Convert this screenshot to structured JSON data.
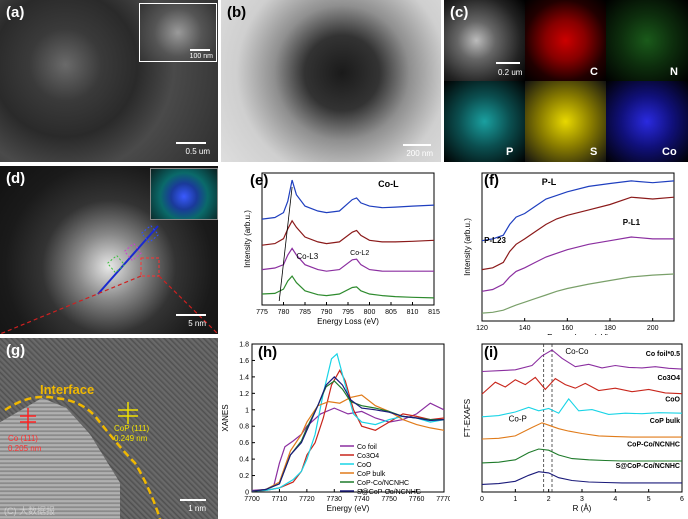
{
  "panels": {
    "a": {
      "label": "(a)",
      "inset_scale": "100 nm",
      "scale": "0.5 um"
    },
    "b": {
      "label": "(b)",
      "scale": "200 nm"
    },
    "c": {
      "label": "(c)",
      "scale": "0.2 um",
      "elements": [
        "C",
        "N",
        "P",
        "S",
        "Co"
      ]
    },
    "d": {
      "label": "(d)",
      "scale": "5 nm"
    },
    "e": {
      "label": "(e)"
    },
    "f": {
      "label": "(f)"
    },
    "g": {
      "label": "(g)",
      "interface": "Interface",
      "co_label": "Co (111)",
      "co_spacing": "0.205 nm",
      "cop_label": "CoP (111)",
      "cop_spacing": "0.249 nm",
      "scale": "1 nm",
      "watermark": "(C) 大数据报"
    },
    "h": {
      "label": "(h)"
    },
    "i": {
      "label": "(i)"
    }
  },
  "chart_data": [
    {
      "type": "line",
      "panel": "e",
      "title": "Co-L",
      "xlabel": "Energy Loss (eV)",
      "ylabel": "Intensity (arb.u.)",
      "xlim": [
        775,
        815
      ],
      "xticks": [
        775,
        780,
        785,
        790,
        795,
        800,
        805,
        810,
        815
      ],
      "annotations": [
        "Co-L3",
        "Co-L2"
      ],
      "series": [
        {
          "color": "#1f3fbf",
          "offset": 3,
          "x": [
            775,
            778,
            780,
            781,
            782,
            783,
            785,
            788,
            790,
            793,
            796,
            797,
            798,
            800,
            803,
            806,
            810,
            815
          ],
          "y": [
            0.35,
            0.4,
            0.55,
            0.9,
            1.55,
            1.1,
            0.75,
            0.6,
            0.55,
            0.6,
            0.95,
            1.0,
            0.85,
            0.75,
            0.7,
            0.72,
            0.75,
            0.78
          ]
        },
        {
          "color": "#8b1a1a",
          "offset": 2,
          "x": [
            775,
            778,
            780,
            781,
            782,
            783,
            785,
            788,
            790,
            793,
            796,
            797,
            798,
            800,
            803,
            806,
            810,
            815
          ],
          "y": [
            0.3,
            0.35,
            0.5,
            0.8,
            1.05,
            0.85,
            0.55,
            0.4,
            0.35,
            0.4,
            0.7,
            0.75,
            0.6,
            0.45,
            0.4,
            0.4,
            0.42,
            0.45
          ]
        },
        {
          "color": "#8b2fa0",
          "offset": 1,
          "x": [
            775,
            778,
            780,
            781,
            782,
            783,
            785,
            788,
            790,
            793,
            796,
            797,
            798,
            800,
            803,
            806,
            810,
            815
          ],
          "y": [
            0.3,
            0.35,
            0.45,
            0.75,
            0.95,
            0.75,
            0.45,
            0.3,
            0.25,
            0.3,
            0.6,
            0.62,
            0.45,
            0.3,
            0.25,
            0.25,
            0.25,
            0.25
          ]
        },
        {
          "color": "#2e8b2e",
          "offset": 0,
          "x": [
            775,
            778,
            780,
            781,
            782,
            783,
            785,
            788,
            790,
            793,
            796,
            797,
            798,
            800,
            803,
            806,
            810,
            815
          ],
          "y": [
            0.3,
            0.32,
            0.45,
            0.7,
            0.85,
            0.65,
            0.4,
            0.28,
            0.25,
            0.3,
            0.5,
            0.52,
            0.4,
            0.3,
            0.25,
            0.22,
            0.2,
            0.18
          ]
        }
      ]
    },
    {
      "type": "line",
      "panel": "f",
      "xlabel": "Energy Loss (eV)",
      "ylabel": "Intensity (arb.u.)",
      "xlim": [
        120,
        210
      ],
      "xticks": [
        120,
        140,
        160,
        180,
        200
      ],
      "annotations": [
        "P-L",
        "P-L1",
        "P-L23"
      ],
      "series": [
        {
          "color": "#1f3fbf",
          "x": [
            120,
            125,
            130,
            133,
            136,
            140,
            145,
            150,
            155,
            160,
            170,
            180,
            190,
            200,
            210
          ],
          "y": [
            2.3,
            2.35,
            2.45,
            2.75,
            2.95,
            3.05,
            3.25,
            3.45,
            3.55,
            3.65,
            3.8,
            3.88,
            3.95,
            3.9,
            3.95
          ]
        },
        {
          "color": "#8b1a1a",
          "x": [
            120,
            125,
            130,
            133,
            136,
            140,
            145,
            150,
            155,
            160,
            170,
            180,
            190,
            200,
            210
          ],
          "y": [
            1.5,
            1.55,
            1.7,
            2.0,
            2.2,
            2.35,
            2.55,
            2.75,
            2.9,
            3.0,
            3.15,
            3.3,
            3.5,
            3.45,
            3.5
          ]
        },
        {
          "color": "#8b2fa0",
          "x": [
            120,
            125,
            130,
            133,
            136,
            140,
            145,
            150,
            155,
            160,
            170,
            180,
            190,
            200,
            210
          ],
          "y": [
            0.9,
            0.95,
            1.1,
            1.3,
            1.45,
            1.55,
            1.7,
            1.85,
            1.95,
            2.05,
            2.2,
            2.3,
            2.4,
            2.35,
            2.35
          ]
        },
        {
          "color": "#7aa06a",
          "x": [
            120,
            125,
            130,
            133,
            136,
            140,
            145,
            150,
            155,
            160,
            170,
            180,
            190,
            200,
            210
          ],
          "y": [
            0.3,
            0.32,
            0.38,
            0.45,
            0.52,
            0.6,
            0.7,
            0.8,
            0.9,
            0.98,
            1.1,
            1.2,
            1.3,
            1.35,
            1.38
          ]
        }
      ]
    },
    {
      "type": "line",
      "panel": "h",
      "xlabel": "Energy (eV)",
      "ylabel": "XANES",
      "xlim": [
        7700,
        7770
      ],
      "ylim": [
        0.0,
        1.8
      ],
      "xticks": [
        7700,
        7710,
        7720,
        7730,
        7740,
        7750,
        7760,
        7770
      ],
      "yticks": [
        0.0,
        0.2,
        0.4,
        0.6,
        0.8,
        1.0,
        1.2,
        1.4,
        1.6,
        1.8
      ],
      "series": [
        {
          "name": "Co foil",
          "color": "#8b2fa0",
          "x": [
            7700,
            7705,
            7708,
            7710,
            7712,
            7715,
            7718,
            7720,
            7725,
            7730,
            7735,
            7740,
            7745,
            7750,
            7755,
            7760,
            7765,
            7770
          ],
          "y": [
            0.02,
            0.03,
            0.08,
            0.35,
            0.55,
            0.62,
            0.7,
            0.8,
            0.95,
            1.02,
            0.95,
            0.98,
            0.9,
            0.85,
            0.88,
            0.95,
            1.08,
            1.0
          ]
        },
        {
          "name": "Co3O4",
          "color": "#c8261c",
          "x": [
            7700,
            7705,
            7710,
            7715,
            7718,
            7720,
            7723,
            7726,
            7729,
            7732,
            7734,
            7737,
            7740,
            7745,
            7750,
            7755,
            7760,
            7765,
            7770
          ],
          "y": [
            0.01,
            0.02,
            0.05,
            0.12,
            0.25,
            0.45,
            0.6,
            0.9,
            1.3,
            1.48,
            1.35,
            1.0,
            0.8,
            0.75,
            0.85,
            0.95,
            0.92,
            0.88,
            0.9
          ]
        },
        {
          "name": "CoO",
          "color": "#19d4e6",
          "x": [
            7700,
            7705,
            7710,
            7715,
            7718,
            7720,
            7723,
            7726,
            7729,
            7731,
            7734,
            7737,
            7740,
            7745,
            7750,
            7755,
            7760,
            7765,
            7770
          ],
          "y": [
            0.01,
            0.02,
            0.05,
            0.15,
            0.25,
            0.4,
            0.7,
            1.2,
            1.62,
            1.68,
            1.3,
            0.95,
            0.85,
            0.82,
            0.88,
            0.92,
            0.9,
            0.85,
            0.88
          ]
        },
        {
          "name": "CoP bulk",
          "color": "#e07b1a",
          "x": [
            7700,
            7705,
            7710,
            7714,
            7718,
            7720,
            7724,
            7728,
            7732,
            7736,
            7740,
            7745,
            7750,
            7755,
            7760,
            7765,
            7770
          ],
          "y": [
            0.01,
            0.03,
            0.12,
            0.5,
            0.7,
            0.85,
            1.05,
            1.1,
            1.08,
            1.15,
            1.18,
            1.05,
            0.98,
            0.88,
            0.82,
            0.78,
            0.75
          ]
        },
        {
          "name": "CoP-Co/NCNHC",
          "color": "#1e7a2a",
          "x": [
            7700,
            7705,
            7710,
            7714,
            7718,
            7720,
            7724,
            7727,
            7730,
            7733,
            7736,
            7740,
            7745,
            7750,
            7755,
            7760,
            7765,
            7770
          ],
          "y": [
            0.01,
            0.03,
            0.1,
            0.45,
            0.62,
            0.78,
            1.05,
            1.28,
            1.35,
            1.25,
            1.1,
            1.05,
            1.02,
            0.98,
            0.92,
            0.9,
            0.88,
            0.88
          ]
        },
        {
          "name": "S@CoP-Co/NCNHC",
          "color": "#1a1a7a",
          "x": [
            7700,
            7705,
            7710,
            7714,
            7718,
            7720,
            7724,
            7727,
            7730,
            7733,
            7736,
            7740,
            7745,
            7750,
            7755,
            7760,
            7765,
            7770
          ],
          "y": [
            0.01,
            0.03,
            0.1,
            0.45,
            0.6,
            0.75,
            1.05,
            1.3,
            1.4,
            1.3,
            1.12,
            1.02,
            1.0,
            0.97,
            0.92,
            0.9,
            0.87,
            0.88
          ]
        }
      ]
    },
    {
      "type": "line",
      "panel": "i",
      "xlabel": "R (Å)",
      "ylabel": "FT-EXAFS",
      "xlim": [
        0,
        6
      ],
      "xticks": [
        0,
        1,
        2,
        3,
        4,
        5,
        6
      ],
      "reference_lines": [
        1.85,
        2.1
      ],
      "annotations": [
        "Co-Co",
        "Co-P"
      ],
      "series": [
        {
          "name": "Co foil*0.5",
          "color": "#8b2fa0",
          "x": [
            0,
            0.5,
            1.0,
            1.5,
            1.8,
            2.1,
            2.4,
            2.8,
            3.2,
            3.6,
            4.0,
            4.4,
            4.8,
            5.2,
            5.6,
            6.0
          ],
          "y": [
            0.05,
            0.08,
            0.12,
            0.3,
            0.7,
            0.95,
            0.6,
            0.25,
            0.35,
            0.2,
            0.3,
            0.22,
            0.2,
            0.25,
            0.18,
            0.15
          ]
        },
        {
          "name": "Co3O4",
          "color": "#c8261c",
          "x": [
            0,
            0.4,
            0.7,
            1.0,
            1.3,
            1.6,
            1.9,
            2.2,
            2.5,
            2.8,
            3.1,
            3.5,
            4.0,
            4.5,
            5.0,
            5.5,
            6.0
          ],
          "y": [
            0.1,
            0.6,
            0.4,
            0.7,
            0.5,
            0.8,
            0.3,
            0.75,
            0.5,
            0.35,
            0.55,
            0.25,
            0.35,
            0.2,
            0.3,
            0.15,
            0.12
          ]
        },
        {
          "name": "CoO",
          "color": "#19d4e6",
          "x": [
            0,
            0.5,
            1.0,
            1.4,
            1.7,
            2.0,
            2.3,
            2.6,
            2.9,
            3.3,
            3.8,
            4.3,
            4.8,
            5.3,
            6.0
          ],
          "y": [
            0.05,
            0.1,
            0.25,
            0.45,
            0.3,
            0.4,
            0.2,
            0.8,
            0.3,
            0.35,
            0.15,
            0.2,
            0.18,
            0.22,
            0.2
          ]
        },
        {
          "name": "CoP bulk",
          "color": "#e07b1a",
          "x": [
            0,
            0.5,
            1.0,
            1.5,
            1.8,
            2.0,
            2.3,
            2.6,
            3.0,
            3.5,
            4.0,
            4.5,
            5.0,
            5.5,
            6.0
          ],
          "y": [
            0.02,
            0.05,
            0.15,
            0.5,
            0.7,
            0.6,
            0.45,
            0.35,
            0.25,
            0.15,
            0.12,
            0.1,
            0.1,
            0.1,
            0.1
          ]
        },
        {
          "name": "CoP-Co/NCNHC",
          "color": "#1e7a2a",
          "x": [
            0,
            0.5,
            1.0,
            1.4,
            1.7,
            2.0,
            2.3,
            2.7,
            3.2,
            3.7,
            4.2,
            4.7,
            5.2,
            6.0
          ],
          "y": [
            0.02,
            0.05,
            0.15,
            0.45,
            0.6,
            0.55,
            0.35,
            0.2,
            0.15,
            0.12,
            0.1,
            0.1,
            0.1,
            0.1
          ]
        },
        {
          "name": "S@CoP-Co/NCNHC",
          "color": "#1a1a7a",
          "x": [
            0,
            0.5,
            1.0,
            1.4,
            1.7,
            2.0,
            2.3,
            2.7,
            3.2,
            3.7,
            4.2,
            4.7,
            5.2,
            6.0
          ],
          "y": [
            0.02,
            0.05,
            0.15,
            0.4,
            0.55,
            0.5,
            0.3,
            0.18,
            0.12,
            0.1,
            0.08,
            0.08,
            0.08,
            0.08
          ]
        }
      ]
    }
  ]
}
